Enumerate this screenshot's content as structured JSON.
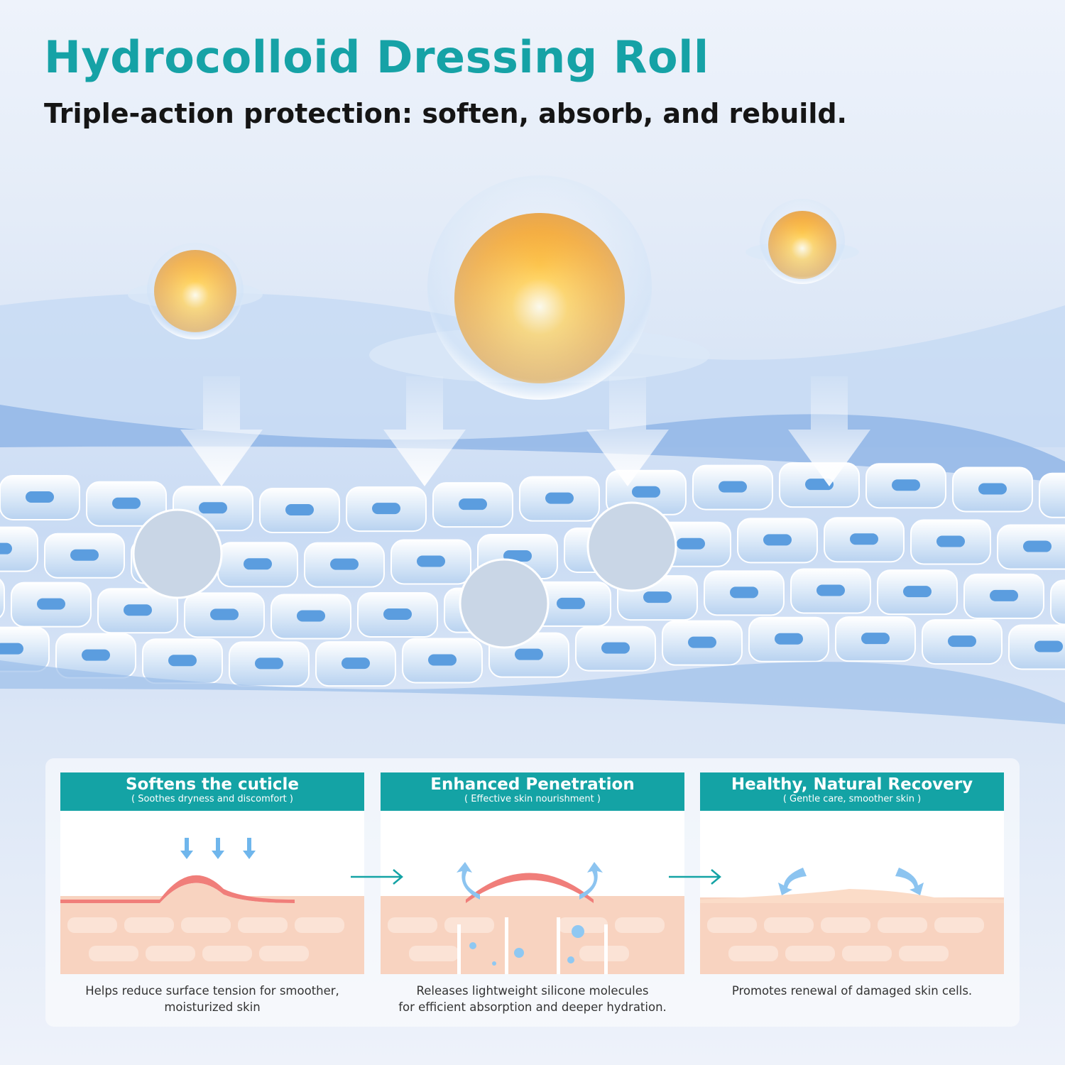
{
  "header": {
    "title": "Hydrocolloid Dressing Roll",
    "subtitle": "Triple-action protection: soften, absorb, and rebuild."
  },
  "colors": {
    "accent": "#14a3a5",
    "orange": "#f7a21b",
    "skin": "#f6c8b2",
    "skin_ridge": "#f07e7a",
    "arrow_blue": "#7fc0ee"
  },
  "panels": [
    {
      "title": "Softens the cuticle",
      "subtitle": "( Soothes dryness and discomfort )",
      "caption_lines": [
        "Helps reduce surface tension for smoother,",
        "moisturized skin"
      ]
    },
    {
      "title": "Enhanced Penetration",
      "subtitle": "( Effective skin nourishment )",
      "caption_lines": [
        "Releases lightweight silicone molecules",
        "for efficient absorption and deeper hydration."
      ]
    },
    {
      "title": "Healthy, Natural Recovery",
      "subtitle": "( Gentle care, smoother skin )",
      "caption_lines": [
        "Promotes renewal of damaged skin cells."
      ]
    }
  ]
}
